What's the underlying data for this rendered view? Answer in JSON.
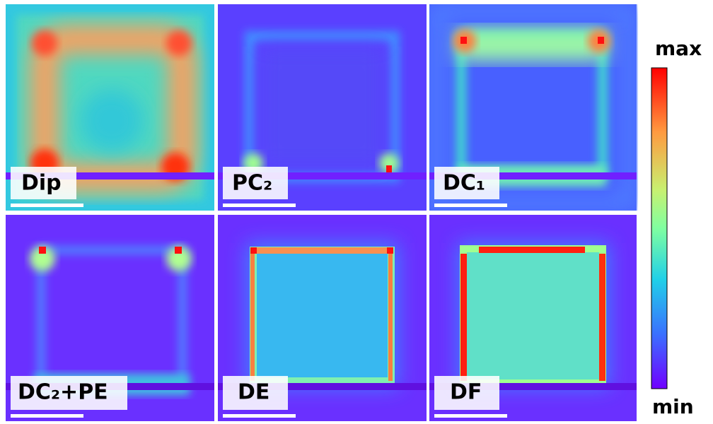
{
  "panels": [
    {
      "label": "Dip"
    },
    {
      "label": "PC₂"
    },
    {
      "label": "DC₁"
    },
    {
      "label": "DC₂+PE"
    },
    {
      "label": "DE"
    },
    {
      "label": "DF"
    }
  ],
  "colorbar": {
    "max": "max",
    "min": "min"
  }
}
